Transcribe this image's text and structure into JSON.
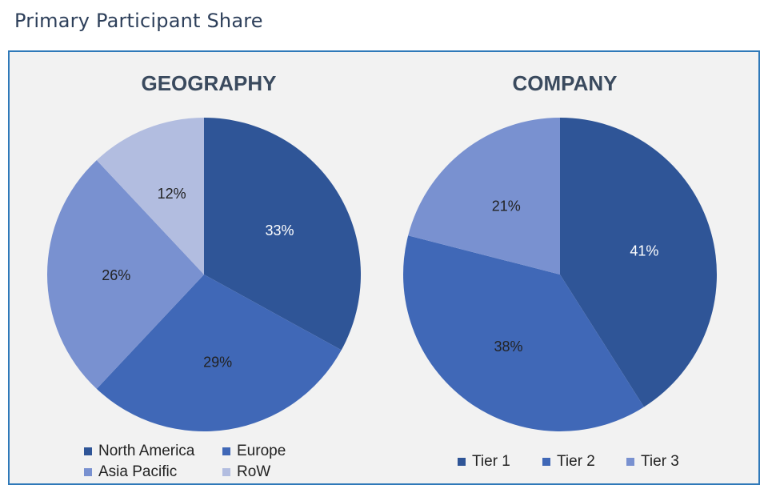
{
  "page": {
    "title": "Primary Participant Share"
  },
  "chart_data": [
    {
      "type": "pie",
      "title": "GEOGRAPHY",
      "categories": [
        "North America",
        "Europe",
        "Asia Pacific",
        "RoW"
      ],
      "values": [
        33,
        29,
        26,
        12
      ],
      "labels": [
        "33%",
        "29%",
        "26%",
        "12%"
      ],
      "colors": [
        "#2f5597",
        "#4068b7",
        "#7991d0",
        "#b2bde0"
      ],
      "label_colors": [
        "#ffffff",
        "#222222",
        "#222222",
        "#222222"
      ],
      "legend_position": "bottom"
    },
    {
      "type": "pie",
      "title": "COMPANY",
      "categories": [
        "Tier 1",
        "Tier 2",
        "Tier 3"
      ],
      "values": [
        41,
        38,
        21
      ],
      "labels": [
        "41%",
        "38%",
        "21%"
      ],
      "colors": [
        "#2f5597",
        "#4068b7",
        "#7991d0"
      ],
      "label_colors": [
        "#ffffff",
        "#222222",
        "#222222"
      ],
      "legend_position": "bottom"
    }
  ]
}
